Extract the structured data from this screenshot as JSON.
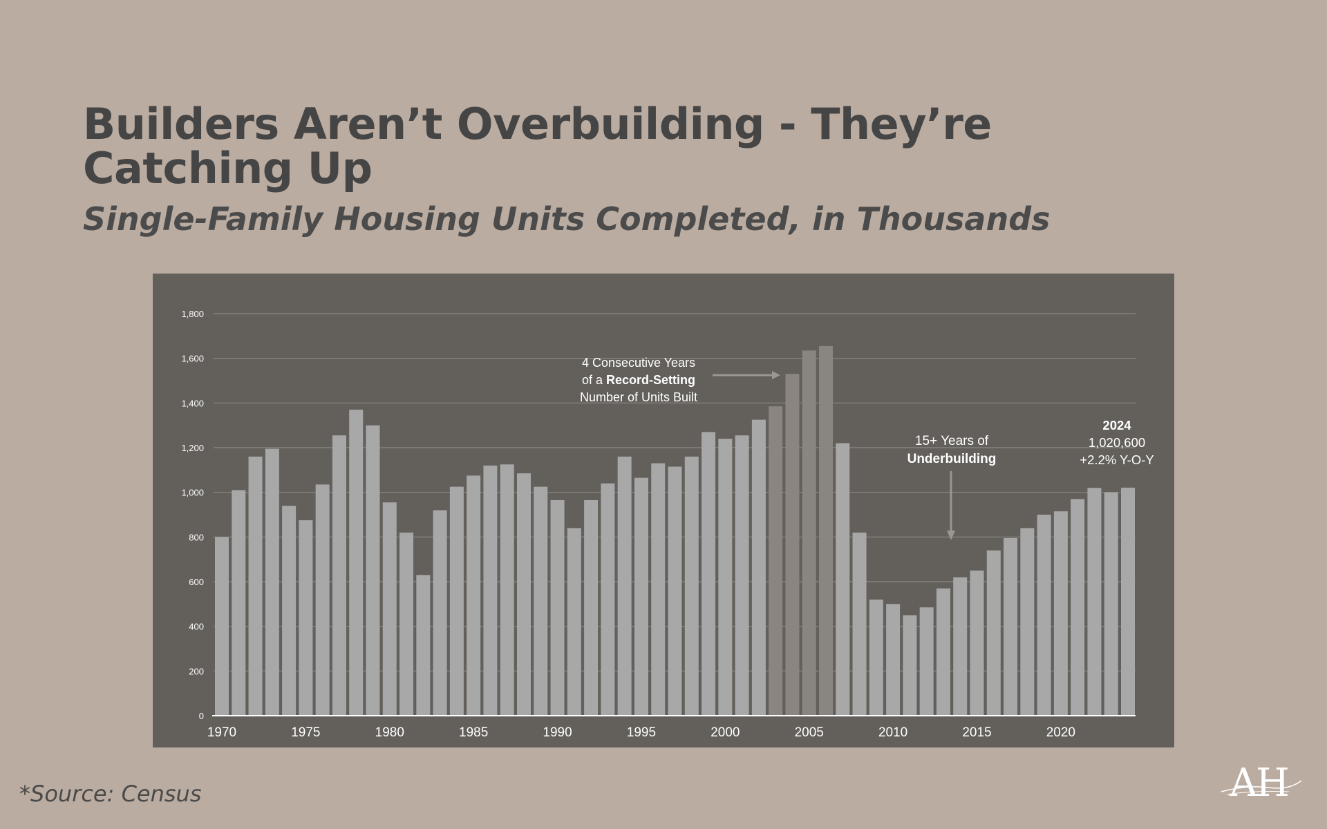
{
  "header": {
    "title": "Builders Aren’t Overbuilding - They’re Catching Up",
    "subtitle": "Single-Family Housing Units Completed, in Thousands"
  },
  "footer": {
    "source": "*Source: Census"
  },
  "colors": {
    "background": "#baaca1",
    "panel": "#635f5b",
    "bar": "#a8a8a8",
    "bar_highlight": "#8a8580",
    "annotation_text": "#ffffff",
    "gridline": "#8c8884"
  },
  "chart_data": {
    "type": "bar",
    "title": "",
    "xlabel": "",
    "ylabel": "",
    "ylim": [
      0,
      1800
    ],
    "y_ticks": [
      "0",
      "200",
      "400",
      "600",
      "800",
      "1,000",
      "1,200",
      "1,400",
      "1,600",
      "1,800"
    ],
    "x_tick_labels": [
      "1970",
      "1975",
      "1980",
      "1985",
      "1990",
      "1995",
      "2000",
      "2005",
      "2010",
      "2015",
      "2020"
    ],
    "grid": true,
    "categories": [
      1970,
      1971,
      1972,
      1973,
      1974,
      1975,
      1976,
      1977,
      1978,
      1979,
      1980,
      1981,
      1982,
      1983,
      1984,
      1985,
      1986,
      1987,
      1988,
      1989,
      1990,
      1991,
      1992,
      1993,
      1994,
      1995,
      1996,
      1997,
      1998,
      1999,
      2000,
      2001,
      2002,
      2003,
      2004,
      2005,
      2006,
      2007,
      2008,
      2009,
      2010,
      2011,
      2012,
      2013,
      2014,
      2015,
      2016,
      2017,
      2018,
      2019,
      2020,
      2021,
      2022,
      2023,
      2024
    ],
    "values": [
      800,
      1010,
      1160,
      1195,
      940,
      875,
      1035,
      1255,
      1370,
      1300,
      955,
      820,
      630,
      920,
      1025,
      1075,
      1120,
      1125,
      1085,
      1025,
      965,
      840,
      965,
      1040,
      1160,
      1065,
      1130,
      1115,
      1160,
      1270,
      1240,
      1255,
      1325,
      1385,
      1530,
      1635,
      1655,
      1220,
      820,
      520,
      500,
      450,
      485,
      570,
      620,
      650,
      740,
      795,
      840,
      900,
      915,
      970,
      1020,
      1000,
      1021
    ],
    "highlighted": [
      2003,
      2004,
      2005,
      2006
    ],
    "annotations": [
      {
        "name": "record-setting",
        "lines": [
          [
            {
              "text": "4 Consecutive Years",
              "bold": false
            }
          ],
          [
            {
              "text": "of a ",
              "bold": false
            },
            {
              "text": "Record-Setting",
              "bold": true
            }
          ],
          [
            {
              "text": "Number of Units Built",
              "bold": false
            }
          ]
        ]
      },
      {
        "name": "underbuilding",
        "lines": [
          [
            {
              "text": "15+ Years of",
              "bold": false
            }
          ],
          [
            {
              "text": "Underbuilding",
              "bold": true
            }
          ]
        ]
      },
      {
        "name": "latest-2024",
        "lines": [
          [
            {
              "text": "2024",
              "bold": true
            }
          ],
          [
            {
              "text": "1,020,600",
              "bold": false
            }
          ],
          [
            {
              "text": "+2.2% Y-O-Y",
              "bold": false
            }
          ]
        ]
      }
    ]
  }
}
